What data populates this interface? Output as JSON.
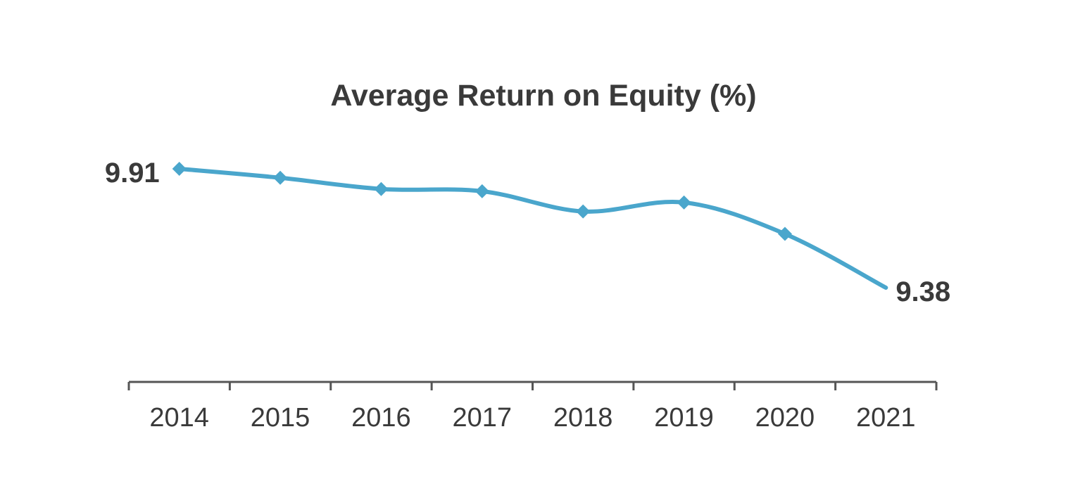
{
  "chart_data": {
    "type": "line",
    "title": "Average Return on Equity (%)",
    "categories": [
      "2014",
      "2015",
      "2016",
      "2017",
      "2018",
      "2019",
      "2020",
      "2021"
    ],
    "series": [
      {
        "values": [
          9.91,
          9.87,
          9.82,
          9.81,
          9.72,
          9.76,
          9.62,
          9.38
        ]
      }
    ],
    "data_labels": [
      {
        "index": 0,
        "text": "9.91"
      },
      {
        "index": 7,
        "text": "9.38"
      }
    ],
    "xlabel": "",
    "ylabel": "",
    "y_axis_visible": false,
    "grid": false,
    "legend": "none",
    "colors": {
      "line": "#4aa6cc",
      "axis": "#555555",
      "text": "#3a3a3a"
    }
  }
}
